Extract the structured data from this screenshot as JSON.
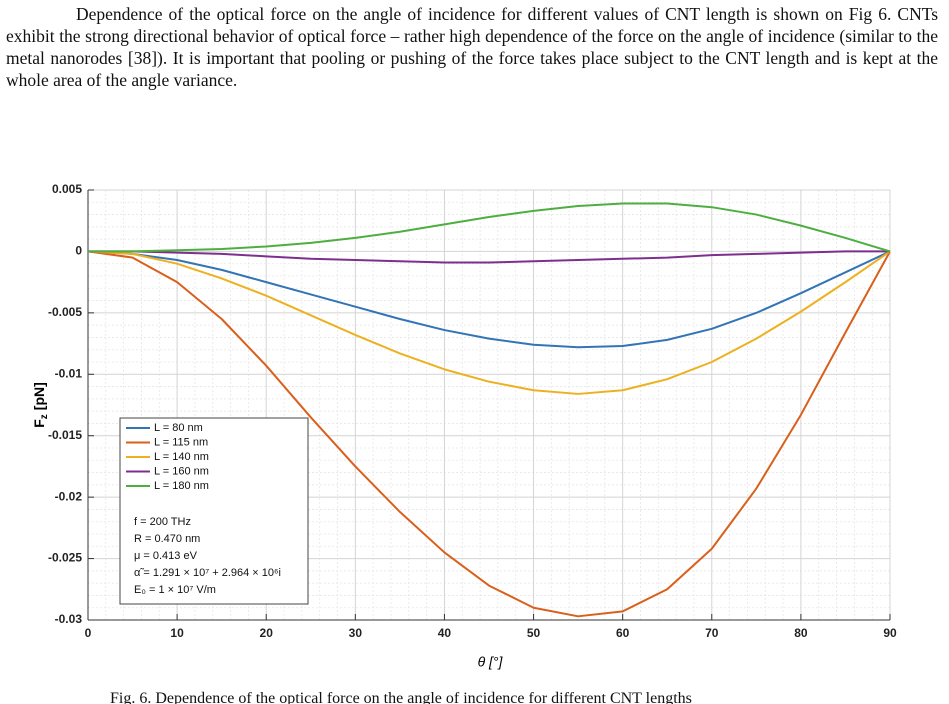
{
  "paragraph": "Dependence of the optical force on the angle of incidence for different values of CNT length is shown on Fig 6. CNTs exhibit the strong directional behavior of optical force – rather high dependence of the force on the angle of incidence (similar to the metal nanorodes [38]).  It is important that pooling or pushing of the force takes place subject to the CNT length and is kept at the whole area of the angle variance.",
  "chart_data": {
    "type": "line",
    "x_label": "θ [°]",
    "y_label": "F",
    "y_label_sub": "z",
    "y_label_unit": "[pN]",
    "x": [
      0,
      5,
      10,
      15,
      20,
      25,
      30,
      35,
      40,
      45,
      50,
      55,
      60,
      65,
      70,
      75,
      80,
      85,
      90
    ],
    "xlim": [
      0,
      90
    ],
    "xticks": [
      0,
      10,
      20,
      30,
      40,
      50,
      60,
      70,
      80,
      90
    ],
    "ylim": [
      -0.03,
      0.005
    ],
    "yticks": [
      0.005,
      0,
      -0.005,
      -0.01,
      -0.015,
      -0.02,
      -0.025,
      -0.03
    ],
    "grid": true,
    "legend": "lower left",
    "series": [
      {
        "name": "L = 80 nm",
        "color": "#3274b5",
        "values": [
          0,
          -0.0002,
          -0.0007,
          -0.0015,
          -0.0025,
          -0.0035,
          -0.0045,
          -0.0055,
          -0.0064,
          -0.0071,
          -0.0076,
          -0.0078,
          -0.0077,
          -0.0072,
          -0.0063,
          -0.005,
          -0.0034,
          -0.0017,
          0
        ]
      },
      {
        "name": "L = 115 nm",
        "color": "#d95f1a",
        "values": [
          0,
          -0.0005,
          -0.0025,
          -0.0055,
          -0.0093,
          -0.0135,
          -0.0175,
          -0.0212,
          -0.0245,
          -0.0272,
          -0.029,
          -0.0297,
          -0.0293,
          -0.0275,
          -0.0242,
          -0.0193,
          -0.0133,
          -0.0066,
          0
        ]
      },
      {
        "name": "L = 140 nm",
        "color": "#edb120",
        "values": [
          0,
          -0.0002,
          -0.001,
          -0.0022,
          -0.0036,
          -0.0052,
          -0.0068,
          -0.0083,
          -0.0096,
          -0.0106,
          -0.0113,
          -0.0116,
          -0.0113,
          -0.0104,
          -0.009,
          -0.0071,
          -0.0049,
          -0.0025,
          0
        ]
      },
      {
        "name": "L = 160 nm",
        "color": "#7e2f8e",
        "values": [
          0,
          0,
          -0.0001,
          -0.0002,
          -0.0004,
          -0.0006,
          -0.0007,
          -0.0008,
          -0.0009,
          -0.0009,
          -0.0008,
          -0.0007,
          -0.0006,
          -0.0005,
          -0.0003,
          -0.0002,
          -0.0001,
          0,
          0
        ]
      },
      {
        "name": "L = 180 nm",
        "color": "#4daf3f",
        "values": [
          0,
          0,
          0.0001,
          0.0002,
          0.0004,
          0.0007,
          0.0011,
          0.0016,
          0.0022,
          0.0028,
          0.0033,
          0.0037,
          0.0039,
          0.0039,
          0.0036,
          0.003,
          0.0021,
          0.0011,
          0
        ]
      }
    ],
    "annotations": [
      "f = 200 THz",
      "R = 0.470 nm",
      "μ = 0.413 eV",
      "α̃ = 1.291 × 10⁷ + 2.964 × 10⁶i",
      "E₀ = 1 × 10⁷ V/m"
    ]
  },
  "caption": "Fig. 6. Dependence of the optical force on the angle of incidence for different CNT lengths"
}
